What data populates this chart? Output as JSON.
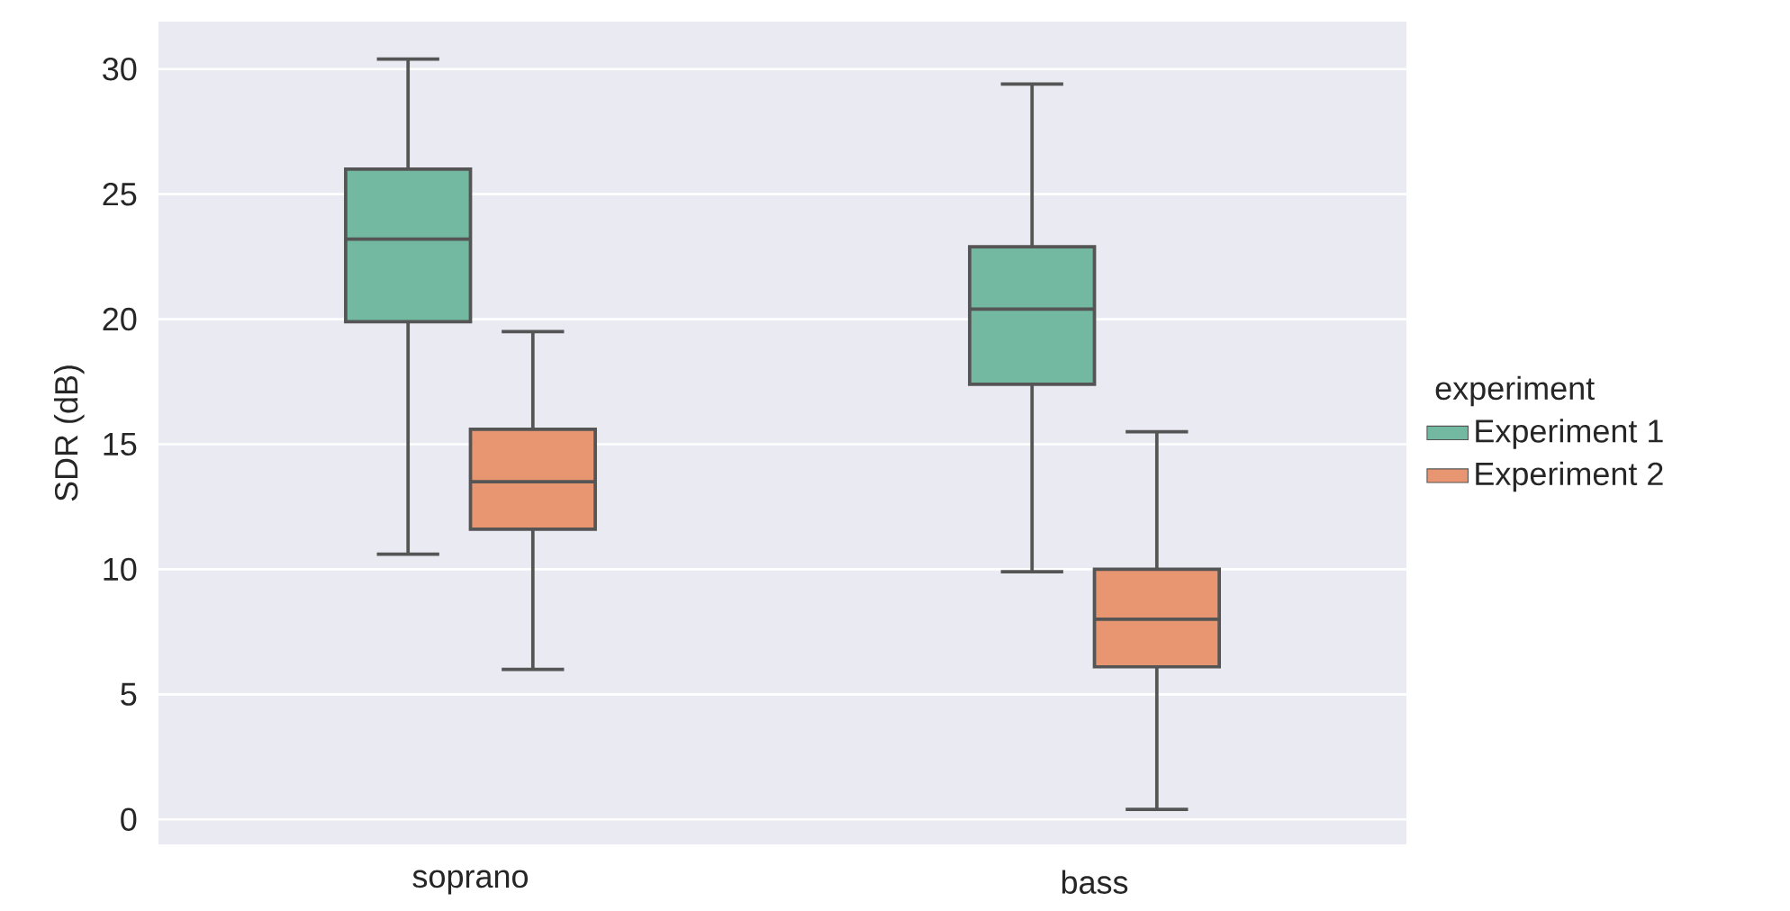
{
  "chart_data": {
    "type": "box",
    "ylabel": "SDR (dB)",
    "legend_title": "experiment",
    "categories": [
      "soprano",
      "bass"
    ],
    "ylim": [
      -1.0,
      31.9
    ],
    "yticks": [
      0,
      5,
      10,
      15,
      20,
      25,
      30
    ],
    "grid": "y",
    "legend": "right",
    "series": [
      {
        "name": "Experiment 1",
        "color": "#73b8a0",
        "boxes": [
          {
            "low": 10.6,
            "q1": 19.9,
            "median": 23.2,
            "q3": 26.0,
            "high": 30.4
          },
          {
            "low": 9.9,
            "q1": 17.4,
            "median": 20.4,
            "q3": 22.9,
            "high": 29.4
          }
        ]
      },
      {
        "name": "Experiment 2",
        "color": "#e89572",
        "boxes": [
          {
            "low": 6.0,
            "q1": 11.6,
            "median": 13.5,
            "q3": 15.6,
            "high": 19.5
          },
          {
            "low": 0.4,
            "q1": 6.1,
            "median": 8.0,
            "q3": 10.0,
            "high": 15.5
          }
        ]
      }
    ]
  }
}
